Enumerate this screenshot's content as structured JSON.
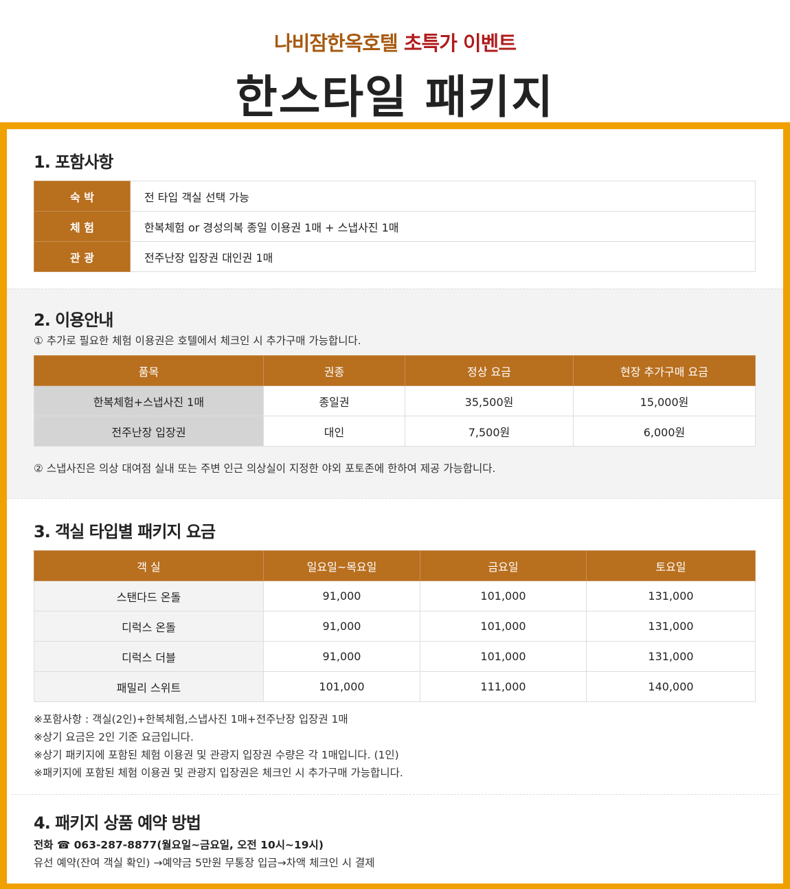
{
  "header": {
    "subtitle_hotel": "나비잠한옥호텔",
    "subtitle_event": "초특가 이벤트",
    "title": "한스타일 패키지"
  },
  "section1": {
    "heading": "1. 포함사항",
    "rows": [
      {
        "label": "숙 박",
        "value": "전 타입 객실 선택 가능"
      },
      {
        "label": "체 험",
        "value": "한복체험 or 경성의복 종일 이용권 1매 + 스냅사진 1매"
      },
      {
        "label": "관 광",
        "value": "전주난장 입장권 대인권 1매"
      }
    ]
  },
  "section2": {
    "heading": "2. 이용안내",
    "note1": "① 추가로 필요한 체험 이용권은 호텔에서 체크인 시 추가구매 가능합니다.",
    "columns": [
      "품목",
      "권종",
      "정상 요금",
      "현장 추가구매 요금"
    ],
    "rows": [
      [
        "한복체험+스냅사진 1매",
        "종일권",
        "35,500원",
        "15,000원"
      ],
      [
        "전주난장 입장권",
        "대인",
        "7,500원",
        "6,000원"
      ]
    ],
    "note2": "② 스냅사진은 의상 대여점 실내 또는 주변 인근 의상실이 지정한 야외 포토존에 한하여 제공 가능합니다."
  },
  "section3": {
    "heading": "3. 객실 타입별 패키지 요금",
    "columns": [
      "객 실",
      "일요일~목요일",
      "금요일",
      "토요일"
    ],
    "rows": [
      [
        "스탠다드 온돌",
        "91,000",
        "101,000",
        "131,000"
      ],
      [
        "디럭스 온돌",
        "91,000",
        "101,000",
        "131,000"
      ],
      [
        "디럭스 더블",
        "91,000",
        "101,000",
        "131,000"
      ],
      [
        "패밀리 스위트",
        "101,000",
        "111,000",
        "140,000"
      ]
    ],
    "notes": [
      "※포함사항 : 객실(2인)+한복체험,스냅사진 1매+전주난장 입장권 1매",
      "※상기 요금은 2인 기준 요금입니다.",
      "※상기 패키지에 포함된 체험 이용권 및 관광지 입장권 수량은 각 1매입니다. (1인)",
      "※패키지에 포함된 체험 이용권 및 관광지 입장권은 체크인 시 추가구매 가능합니다."
    ]
  },
  "section4": {
    "heading": "4. 패키지 상품 예약 방법",
    "phone": "전화 ☎ 063-287-8877(월요일~금요일, 오전 10시~19시)",
    "process": "유선 예약(잔여 객실 확인) →예약금 5만원 무통장 입금→차액 체크인 시 결제"
  }
}
